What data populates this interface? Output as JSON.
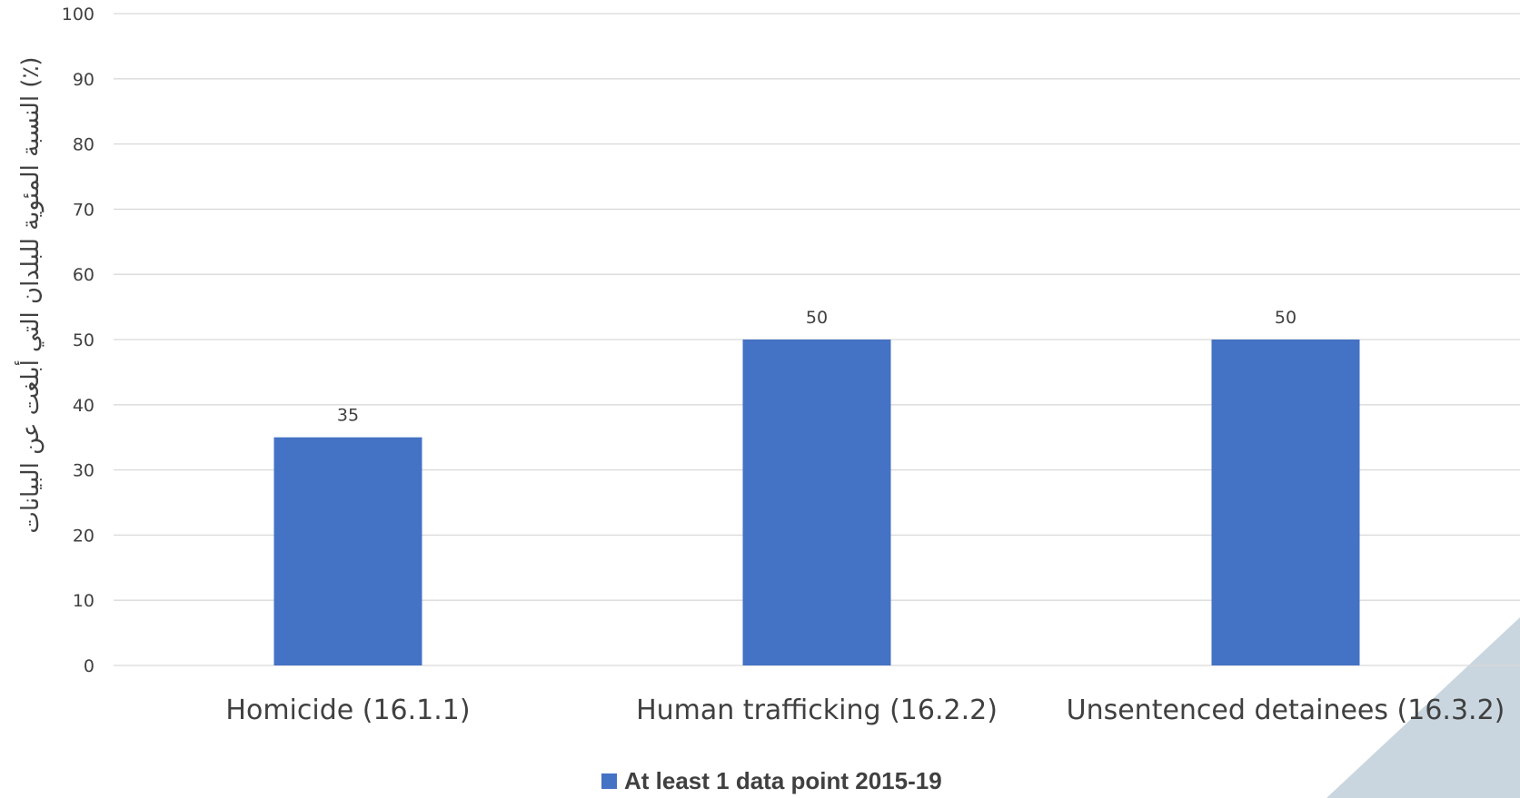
{
  "chart_data": {
    "type": "bar",
    "categories": [
      "Homicide (16.1.1)",
      "Human trafficking (16.2.2)",
      "Unsentenced detainees (16.3.2)"
    ],
    "series": [
      {
        "name": "At least 1 data point 2015-19",
        "values": [
          35,
          50,
          50
        ],
        "color": "#4472C4"
      }
    ],
    "data_labels": [
      "35",
      "50",
      "50"
    ],
    "title": "",
    "xlabel": "",
    "ylabel": "النسبة المئوية للبلدان التي أبلغت عن البيانات (٪)",
    "ylim": [
      0,
      100
    ],
    "yticks": [
      0,
      10,
      20,
      30,
      40,
      50,
      60,
      70,
      80,
      90,
      100
    ],
    "ytick_labels": [
      "0",
      "10",
      "20",
      "30",
      "40",
      "50",
      "60",
      "70",
      "80",
      "90",
      "100"
    ],
    "grid": true,
    "legend_position": "bottom",
    "colors": {
      "gridline": "#D9D9D9",
      "text": "#404040",
      "corner_accent": "#C9D6DF"
    }
  }
}
